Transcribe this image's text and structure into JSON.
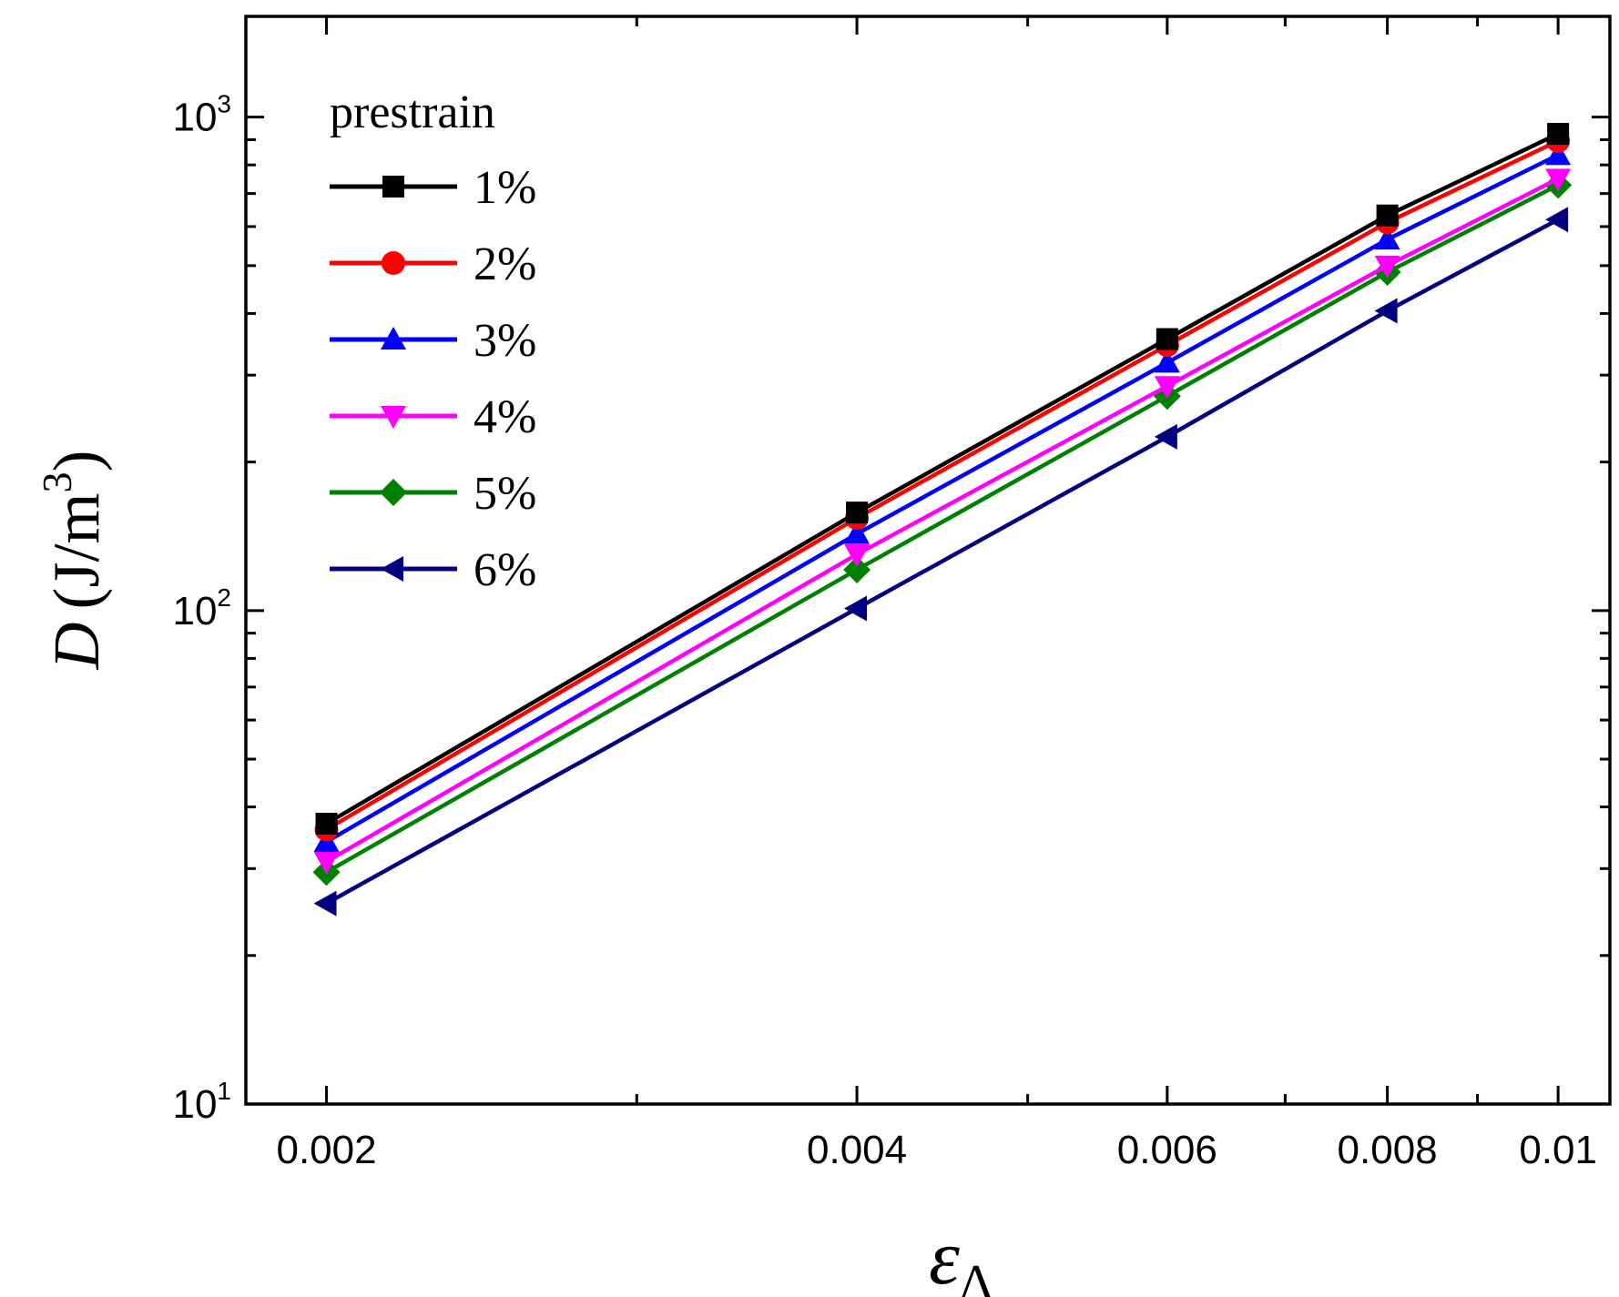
{
  "chart_data": {
    "type": "line",
    "xscale": "log",
    "yscale": "log",
    "xlim": [
      0.0018,
      0.0107
    ],
    "ylim": [
      10,
      1600
    ],
    "x": [
      0.002,
      0.004,
      0.006,
      0.008,
      0.01
    ],
    "x_ticks": [
      0.002,
      0.004,
      0.006,
      0.008,
      0.01
    ],
    "x_tick_labels": [
      "0.002",
      "0.004",
      "0.006",
      "0.008",
      "0.01"
    ],
    "y_ticks": [
      10,
      100,
      1000
    ],
    "y_tick_labels": [
      {
        "base": "10",
        "exp": "1"
      },
      {
        "base": "10",
        "exp": "2"
      },
      {
        "base": "10",
        "exp": "3"
      }
    ],
    "xlabel": {
      "symbol": "ε",
      "subscript": "Δ"
    },
    "ylabel": {
      "symbol": "D",
      "unit": "(J/m",
      "unit_exp": "3",
      "unit_close": ")"
    },
    "legend_title": "prestrain",
    "legend_position": "top-left",
    "series": [
      {
        "name": "1%",
        "color": "#000000",
        "marker": "square",
        "values": [
          37,
          158,
          355,
          632,
          925
        ]
      },
      {
        "name": "2%",
        "color": "#ff0000",
        "marker": "circle",
        "values": [
          36,
          154,
          345,
          612,
          895
        ]
      },
      {
        "name": "3%",
        "color": "#0000ff",
        "marker": "triangle-up",
        "values": [
          34,
          143,
          318,
          565,
          838
        ]
      },
      {
        "name": "4%",
        "color": "#ff00ff",
        "marker": "triangle-down",
        "values": [
          31,
          130,
          285,
          500,
          750
        ]
      },
      {
        "name": "5%",
        "color": "#008000",
        "marker": "diamond",
        "values": [
          29.5,
          121,
          272,
          485,
          728
        ]
      },
      {
        "name": "6%",
        "color": "#000080",
        "marker": "triangle-left",
        "values": [
          25.5,
          101,
          225,
          405,
          620
        ]
      }
    ]
  }
}
